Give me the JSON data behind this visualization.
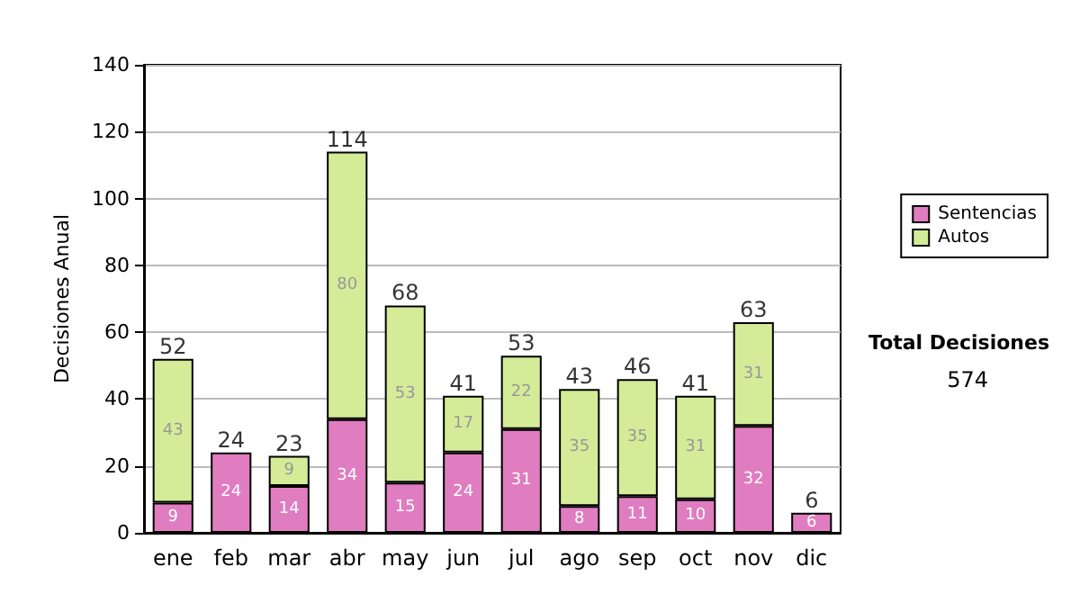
{
  "chart_data": {
    "type": "bar",
    "stacked": true,
    "ylabel": "Decisiones Anual",
    "categories": [
      "ene",
      "feb",
      "mar",
      "abr",
      "may",
      "jun",
      "jul",
      "ago",
      "sep",
      "oct",
      "nov",
      "dic"
    ],
    "series": [
      {
        "name": "Sentencias",
        "color": "#e07cc0",
        "values": [
          9,
          24,
          14,
          34,
          15,
          24,
          31,
          8,
          11,
          10,
          32,
          6
        ],
        "value_labels": [
          "9",
          "24",
          "14",
          "34",
          "15",
          "24",
          "31",
          "8",
          "11",
          "10",
          "32",
          "6"
        ]
      },
      {
        "name": "Autos",
        "color": "#d4ec98",
        "values": [
          43,
          0,
          9,
          80,
          53,
          17,
          22,
          35,
          35,
          31,
          31,
          0
        ],
        "value_labels": [
          "43",
          null,
          "9",
          "80",
          "53",
          "17",
          "22",
          "35",
          "35",
          "31",
          "31",
          null
        ]
      }
    ],
    "totals": [
      "52",
      "24",
      "23",
      "114",
      "68",
      "41",
      "53",
      "43",
      "46",
      "41",
      "63",
      "6"
    ],
    "ylim": [
      0,
      140
    ],
    "yticks": [
      0,
      20,
      40,
      60,
      80,
      100,
      120,
      140
    ],
    "grid": "y",
    "legend": "right",
    "annotations": [
      "Total Decisiones",
      "574"
    ]
  }
}
